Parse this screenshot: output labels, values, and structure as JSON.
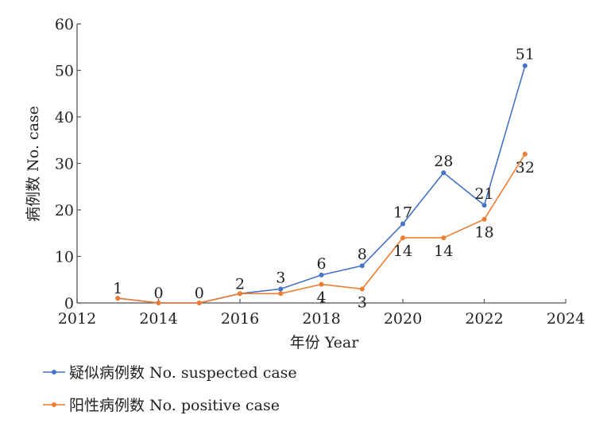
{
  "chart_data": {
    "type": "line",
    "xlabel": "年份 Year",
    "ylabel": "病例数 No. case",
    "xlim": [
      2012,
      2024
    ],
    "ylim": [
      0,
      60
    ],
    "xticks": [
      2012,
      2014,
      2016,
      2018,
      2020,
      2022,
      2024
    ],
    "yticks": [
      0,
      10,
      20,
      30,
      40,
      50,
      60
    ],
    "grid": false,
    "legend_position": "bottom-left",
    "x": [
      2013,
      2014,
      2015,
      2016,
      2017,
      2018,
      2019,
      2020,
      2021,
      2022,
      2023
    ],
    "series": [
      {
        "name": "疑似病例数 No. suspected case",
        "color": "#4472C4",
        "values": [
          1,
          0,
          0,
          2,
          3,
          6,
          8,
          17,
          28,
          21,
          51
        ],
        "labels": [
          "",
          "",
          "",
          "",
          "3",
          "6",
          "8",
          "17",
          "28",
          "21",
          "51"
        ]
      },
      {
        "name": "阳性病例数 No. positive case",
        "color": "#ED7D31",
        "values": [
          1,
          0,
          0,
          2,
          2,
          4,
          3,
          14,
          14,
          18,
          32
        ],
        "labels": [
          "1",
          "0",
          "0",
          "2",
          "",
          "4",
          "3",
          "14",
          "14",
          "18",
          "32"
        ]
      }
    ]
  }
}
